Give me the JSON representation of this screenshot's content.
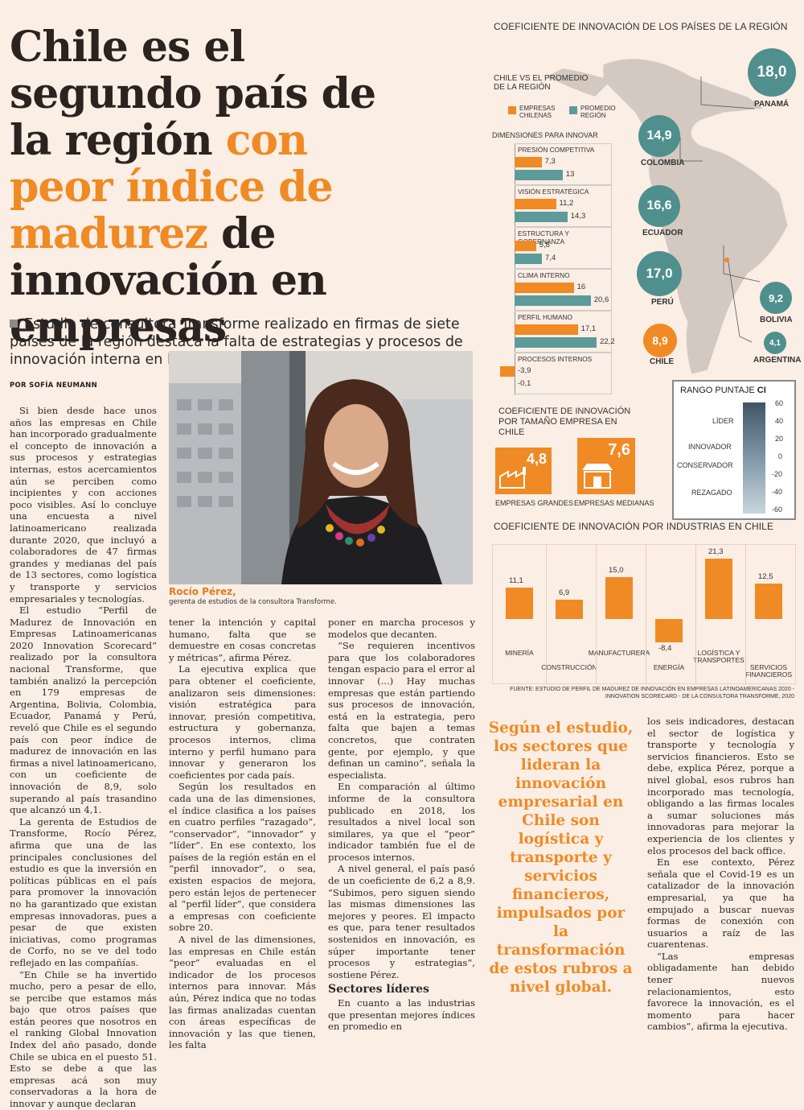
{
  "headline": {
    "part1": "Chile es el segundo país de la región ",
    "highlight": "con peor índice de madurez",
    "part2": " de innovación en empresas"
  },
  "lead": "Estudio de consultora Transforme realizado en firmas de siete países de la región destaca la falta de estrategias y procesos de innovación interna en las compañías nacionales.",
  "byline": "POR SOFÍA NEUMANN",
  "photo": {
    "caption_name": "Rocío Pérez,",
    "caption_role": "gerenta de estudios de la consultora Transforme."
  },
  "body": {
    "col1": [
      "Si bien desde hace unos años las empresas en Chile han incorporado gradualmente el concepto de innovación a sus procesos y estrategias internas, estos acercamientos aún se perciben como incipientes y con acciones poco visibles. Así lo concluye una encuesta a nivel latinoamericano realizada durante 2020, que incluyó a colaboradores de 47 firmas grandes y medianas del país de 13 sectores, como logística y transporte y servicios empresariales y tecnologías.",
      "El estudio “Perfil de Madurez de Innovación en Empresas Latinoamericanas 2020 Innovation Scorecard” realizado por la consultora nacional Transforme, que también analizó la percepción en 179 empresas de Argentina, Bolivia, Colombia, Ecuador, Panamá y Perú, reveló que Chile es el segundo país con peor índice de madurez de innovación en las firmas a nivel latinoamericano, con un coeficiente de innovación de 8,9, solo superando al país trasandino que alcanzó un 4,1.",
      "La gerenta de Estudios de Transforme, Rocío Pérez, afirma que una de las principales conclusiones del estudio es que la inversión en políticas públicas en el país para promover la innovación no ha garantizado que existan empresas innovadoras, pues a pesar de que existen iniciativas, como programas de Corfo, no se ve del todo reflejado en las compañías.",
      "“En Chile se ha invertido mucho, pero a pesar de ello, se percibe que estamos más bajo que otros países que están peores que nosotros en el ranking Global Innovation Index del año pasado, donde Chile se ubica en el puesto 51. Esto se debe a que las empresas acá son muy conservadoras a la hora de innovar y aunque declaran"
    ],
    "col2": [
      "tener la intención y capital humano, falta que se demuestre en cosas concretas y métricas”, afirma Pérez.",
      "La ejecutiva explica que para obtener el coeficiente, analizaron seis dimensiones: visión estratégica para innovar, presión competitiva, estructura y gobernanza, procesos internos, clima interno y perfil humano para innovar y generaron los coeficientes por cada país.",
      "Según los resultados en cada una de las dimensiones, el índice clasifica a los países en cuatro perfiles “razagado”, “conservador”, “innovador” y “líder”. En ese contexto, los países de la región están en el “perfil innovador”, o sea, existen espacios de mejora, pero están lejos de pertenecer al “perfil líder”, que considera a empresas con coeficiente sobre 20.",
      "A nivel de las dimensiones, las empresas en Chile están “peor” evaluadas en el indicador de los procesos internos para innovar. Más aún, Pérez indica que no todas las firmas analizadas cuentan con áreas específicas de innovación y las que tienen, les falta"
    ],
    "col3": [
      "poner en marcha procesos y modelos que decanten.",
      "“Se requieren incentivos para que los colaboradores tengan espacio para el error al innovar (...) Hay muchas empresas que están partiendo sus procesos de innovación, está en la estrategia, pero falta que bajen a temas concretos, que contraten gente, por ejemplo, y que definan un camino”, señala la especialista.",
      "En comparación al último informe de la consultora publicado en 2018, los resultados a nivel local son similares, ya que el “peor” indicador también fue el de procesos internos.",
      "A nivel general, el país pasó de un coeficiente de 6,2 a 8,9. “Subimos, pero siguen siendo las mismas dimensiones las mejores y peores. El impacto es que, para tener resultados sostenidos en innovación, es súper importante tener procesos y estrategias”, sostiene Pérez."
    ],
    "col3_subhead": "Sectores líderes",
    "col3_after": "En cuanto a las industrias que presentan mejores índices en promedio en",
    "col4": [
      "los seis indicadores, destacan el sector de logística y transporte y tecnología y servicios financieros. Esto se debe, explica Pérez, porque a nivel global, esos rubros han incorporado mas tecnología, obligando a las firmas locales a sumar soluciones más innovadoras para mejorar la experiencia de los clientes y elos procesos del back office.",
      "En ese contexto, Pérez señala que el Covid-19 es un catalizador de la innovación empresarial, ya que ha empujado a buscar nuevas formas de conexión con usuarios a raíz de las cuarentenas.",
      "“Las empresas obligadamente han debido tener nuevos relacionamientos, esto favorece la innovación, es el momento para hacer cambios”, afirma la ejecutiva."
    ]
  },
  "pull_quote": "Según el estudio, los sectores que lideran la innovación empresarial en Chile son logística y transporte y servicios financieros, impulsados por la transformación de estos rubros a nivel global.",
  "infographic": {
    "title": "COEFICIENTE DE INNOVACIÓN DE LOS PAÍSES DE LA REGIÓN",
    "colors": {
      "chile": "#f08a24",
      "promedio": "#5d9a9a",
      "bubble_teal": "#4f8f8e",
      "bubble_orange": "#f08a24"
    },
    "countries": [
      {
        "name": "PANAMÁ",
        "value": "18,0",
        "color": "teal"
      },
      {
        "name": "COLOMBIA",
        "value": "14,9",
        "color": "teal"
      },
      {
        "name": "ECUADOR",
        "value": "16,6",
        "color": "teal"
      },
      {
        "name": "PERÚ",
        "value": "17,0",
        "color": "teal"
      },
      {
        "name": "BOLIVIA",
        "value": "9,2",
        "color": "teal"
      },
      {
        "name": "ARGENTINA",
        "value": "4,1",
        "color": "teal"
      },
      {
        "name": "CHILE",
        "value": "8,9",
        "color": "orange"
      }
    ],
    "vs_title": "CHILE VS EL PROMEDIO DE LA REGIÓN",
    "legend": {
      "chile": "EMPRESAS CHILENAS",
      "promedio": "PROMEDIO REGIÓN"
    },
    "dim_title": "DIMENSIONES PARA INNOVAR",
    "tamano_title": "COEFICIENTE DE INNOVACIÓN POR TAMAÑO EMPRESA EN CHILE",
    "tamano": [
      {
        "label": "EMPRESAS GRANDES",
        "value": "4,8",
        "icon": "factory-icon"
      },
      {
        "label": "EMPRESAS MEDIANAS",
        "value": "7,6",
        "icon": "store-icon"
      }
    ],
    "rango": {
      "title": "RANGO PUNTAJE",
      "title_bold": "CI",
      "levels": [
        "LÍDER",
        "INNOVADOR",
        "CONSERVADOR",
        "REZAGADO"
      ],
      "ticks": [
        "60",
        "40",
        "20",
        "0",
        "-20",
        "-40",
        "-60"
      ]
    },
    "industries_title": "COEFICIENTE DE INNOVACIÓN POR INDUSTRIAS EN CHILE",
    "source": "FUENTE: ESTUDIO DE PERFIL DE MADUREZ DE INNOVACIÓN EN EMPRESAS LATINOAMERICANAS 2020 - INNOVATION SCORECARD - DE LA CONSULTORA TRANSFORME, 2020"
  },
  "chart_data": [
    {
      "type": "bar",
      "orientation": "horizontal",
      "title": "DIMENSIONES PARA INNOVAR",
      "categories": [
        "PRESIÓN COMPETITIVA",
        "VISIÓN ESTRATÉGICA",
        "ESTRUCTURA Y GOBERNANZA",
        "CLIMA INTERNO",
        "PERFIL HUMANO",
        "PROCESOS INTERNOS"
      ],
      "series": [
        {
          "name": "EMPRESAS CHILENAS",
          "values": [
            7.3,
            11.2,
            5.8,
            16,
            17.1,
            -3.9
          ],
          "labels": [
            "7,3",
            "11,2",
            "5,8",
            "16",
            "17,1",
            "-3,9"
          ]
        },
        {
          "name": "PROMEDIO REGIÓN",
          "values": [
            13,
            14.3,
            7.4,
            20.6,
            22.2,
            -0.1
          ],
          "labels": [
            "13",
            "14,3",
            "7,4",
            "20,6",
            "22,2",
            "-0,1"
          ]
        }
      ]
    },
    {
      "type": "bar",
      "title": "COEFICIENTE DE INNOVACIÓN POR INDUSTRIAS EN CHILE",
      "categories": [
        "MINERÍA",
        "CONSTRUCCIÓN",
        "MANUFACTURERA",
        "ENERGÍA",
        "LOGÍSTICA Y TRANSPORTES",
        "SERVICIOS FINANCIEROS"
      ],
      "values": [
        11.1,
        6.9,
        15.0,
        -8.4,
        21.3,
        12.5
      ],
      "labels": [
        "11,1",
        "6,9",
        "15,0",
        "-8,4",
        "21,3",
        "12,5"
      ]
    }
  ]
}
